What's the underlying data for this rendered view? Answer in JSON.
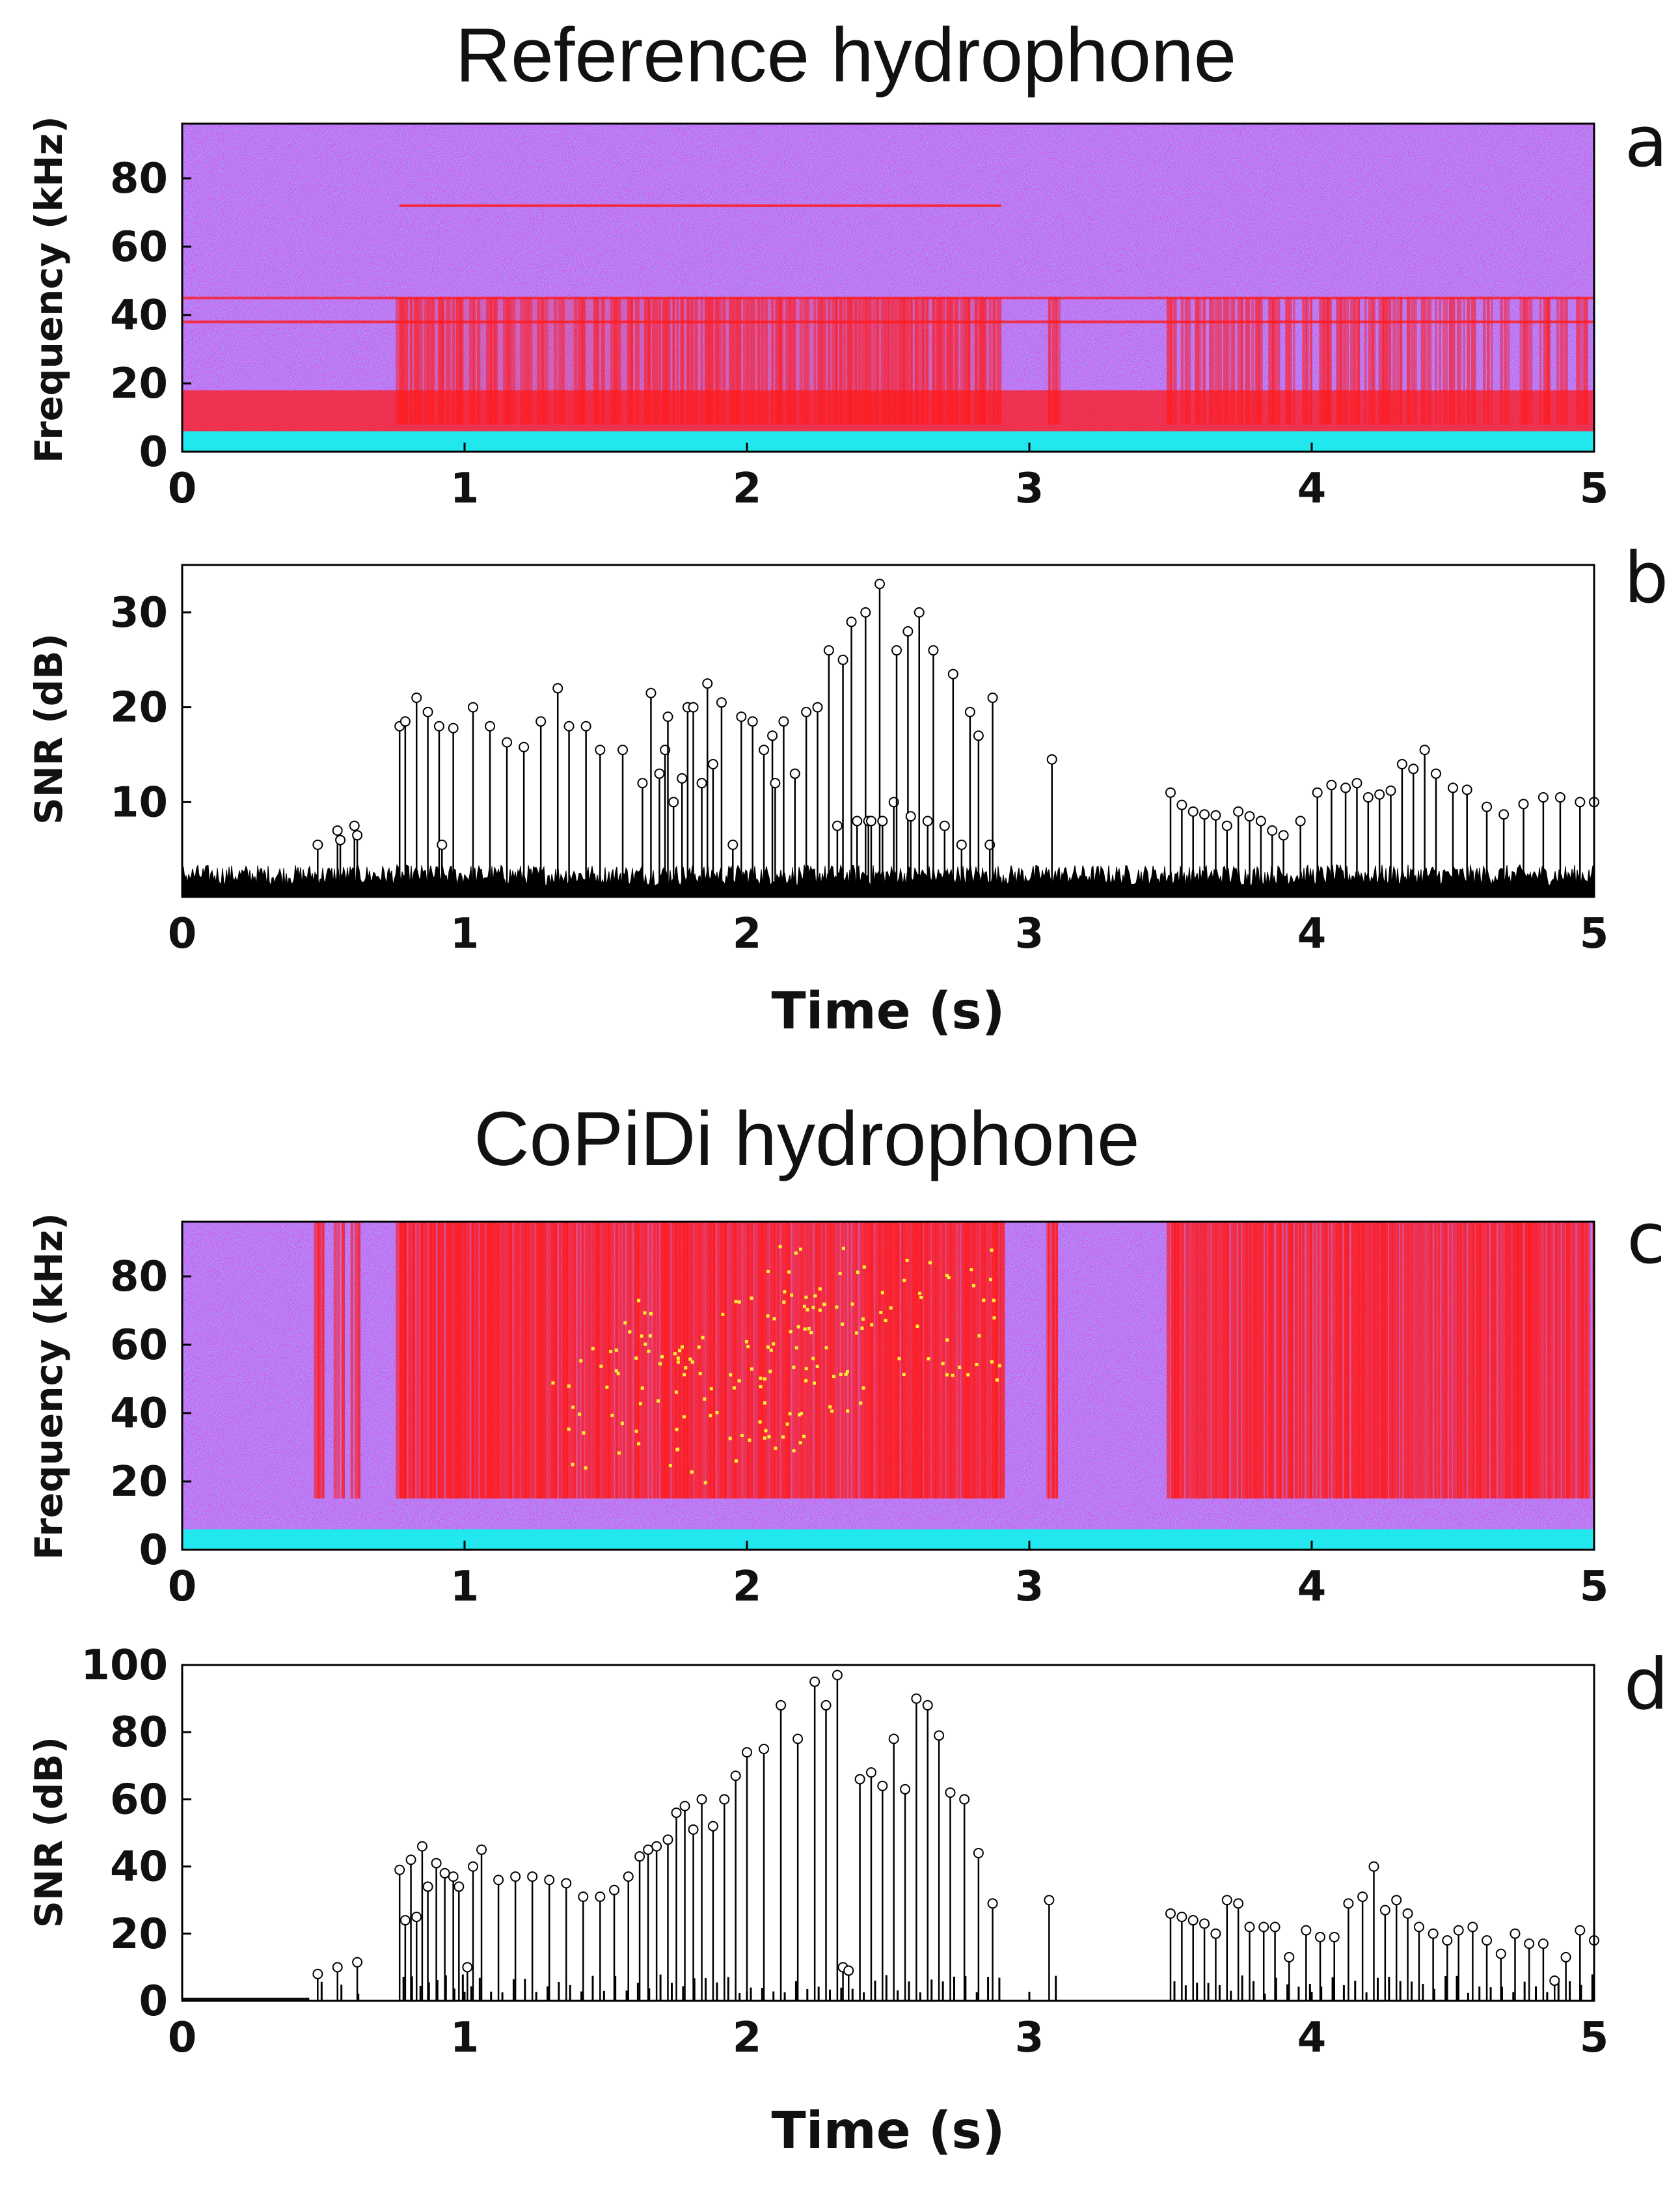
{
  "titles": {
    "top": "Reference hydrophone",
    "bottom": "CoPiDi hydrophone"
  },
  "colors": {
    "spec_bg": "#e640f0",
    "spec_hot": "#ff1a1a",
    "spec_low": "#21e8ee",
    "spec_peak": "#ffee33",
    "ink": "#000000"
  },
  "chart_data": [
    {
      "panel": "a",
      "type": "heatmap",
      "title": "Reference hydrophone",
      "xlabel": "",
      "ylabel": "Frequency (kHz)",
      "xlim": [
        0,
        5
      ],
      "ylim": [
        0,
        96
      ],
      "xticks": [
        "0",
        "1",
        "2",
        "3",
        "4",
        "5"
      ],
      "yticks": [
        "0",
        "20",
        "40",
        "60",
        "80"
      ],
      "noise_floor_band_khz": [
        0,
        6
      ],
      "click_band_khz": [
        8,
        45
      ],
      "click_times": [
        0.77,
        0.82,
        0.87,
        0.92,
        0.97,
        1.03,
        1.09,
        1.15,
        1.21,
        1.27,
        1.33,
        1.4,
        1.47,
        1.53,
        1.59,
        1.65,
        1.7,
        1.75,
        1.8,
        1.85,
        1.9,
        1.95,
        2.0,
        2.05,
        2.1,
        2.15,
        2.2,
        2.25,
        2.3,
        2.34,
        2.38,
        2.42,
        2.46,
        2.5,
        2.54,
        2.58,
        2.62,
        2.67,
        2.72,
        2.77,
        2.82,
        2.87,
        3.08,
        3.5,
        3.55,
        3.6,
        3.65,
        3.7,
        3.75,
        3.8,
        3.86,
        3.92,
        3.98,
        4.04,
        4.1,
        4.15,
        4.2,
        4.25,
        4.3,
        4.35,
        4.4,
        4.45,
        4.5,
        4.55,
        4.62,
        4.68,
        4.75,
        4.82,
        4.88,
        4.95
      ],
      "tonal_lines_khz": [
        38,
        45,
        72
      ]
    },
    {
      "panel": "b",
      "type": "scatter",
      "title": "",
      "xlabel": "Time (s)",
      "ylabel": "SNR (dB)",
      "xlim": [
        0,
        5
      ],
      "ylim": [
        0,
        35
      ],
      "xticks": [
        "0",
        "1",
        "2",
        "3",
        "4",
        "5"
      ],
      "yticks": [
        "10",
        "20",
        "30"
      ],
      "noise_level_db": 2,
      "peaks": {
        "t": [
          0.48,
          0.55,
          0.56,
          0.61,
          0.62,
          0.77,
          0.79,
          0.83,
          0.87,
          0.91,
          0.92,
          0.96,
          1.03,
          1.09,
          1.15,
          1.21,
          1.27,
          1.33,
          1.37,
          1.43,
          1.48,
          1.56,
          1.63,
          1.66,
          1.69,
          1.71,
          1.72,
          1.74,
          1.77,
          1.79,
          1.81,
          1.84,
          1.86,
          1.88,
          1.91,
          1.95,
          1.98,
          2.02,
          2.06,
          2.09,
          2.1,
          2.13,
          2.17,
          2.21,
          2.25,
          2.29,
          2.32,
          2.34,
          2.37,
          2.39,
          2.42,
          2.43,
          2.44,
          2.47,
          2.48,
          2.52,
          2.53,
          2.57,
          2.58,
          2.61,
          2.64,
          2.66,
          2.7,
          2.73,
          2.76,
          2.79,
          2.82,
          2.86,
          2.87,
          3.08,
          3.5,
          3.54,
          3.58,
          3.62,
          3.66,
          3.7,
          3.74,
          3.78,
          3.82,
          3.86,
          3.9,
          3.96,
          4.02,
          4.07,
          4.12,
          4.16,
          4.2,
          4.24,
          4.28,
          4.32,
          4.36,
          4.4,
          4.44,
          4.5,
          4.55,
          4.62,
          4.68,
          4.75,
          4.82,
          4.88,
          4.95,
          5.0
        ],
        "snr": [
          5.5,
          7,
          6,
          7.5,
          6.5,
          18,
          18.5,
          21,
          19.5,
          18,
          5.5,
          17.8,
          20,
          18,
          16.3,
          15.8,
          18.5,
          22,
          18,
          18,
          15.5,
          15.5,
          12,
          21.5,
          13,
          15.5,
          19,
          10,
          12.5,
          20,
          20,
          12,
          22.5,
          14,
          20.5,
          5.5,
          19,
          18.5,
          15.5,
          17,
          12,
          18.5,
          13,
          19.5,
          20,
          26,
          7.5,
          25,
          29,
          8,
          30,
          8,
          8,
          33,
          8,
          10,
          26,
          28,
          8.5,
          30,
          8,
          26,
          7.5,
          23.5,
          5.5,
          19.5,
          17,
          5.5,
          21,
          14.5,
          11,
          9.7,
          9,
          8.7,
          8.6,
          7.5,
          9,
          8.5,
          8,
          7,
          6.5,
          8,
          11,
          11.8,
          11.5,
          12,
          10.5,
          10.8,
          11.2,
          14,
          13.5,
          15.5,
          13,
          11.5,
          11.3,
          9.5,
          8.7,
          9.8,
          10.5,
          10.5,
          10,
          10
        ]
      }
    },
    {
      "panel": "c",
      "type": "heatmap",
      "title": "CoPiDi hydrophone",
      "xlabel": "",
      "ylabel": "Frequency (kHz)",
      "xlim": [
        0,
        5
      ],
      "ylim": [
        0,
        96
      ],
      "xticks": [
        "0",
        "1",
        "2",
        "3",
        "4",
        "5"
      ],
      "yticks": [
        "0",
        "20",
        "40",
        "60",
        "80"
      ],
      "noise_floor_band_khz": [
        0,
        6
      ],
      "click_band_khz": [
        15,
        96
      ],
      "click_times": [
        0.48,
        0.55,
        0.61,
        0.77,
        0.8,
        0.83,
        0.86,
        0.89,
        0.92,
        0.95,
        0.98,
        1.01,
        1.04,
        1.08,
        1.12,
        1.16,
        1.2,
        1.24,
        1.28,
        1.32,
        1.36,
        1.4,
        1.44,
        1.48,
        1.52,
        1.56,
        1.6,
        1.64,
        1.68,
        1.72,
        1.76,
        1.8,
        1.84,
        1.88,
        1.92,
        1.96,
        2.0,
        2.04,
        2.08,
        2.12,
        2.16,
        2.2,
        2.24,
        2.28,
        2.32,
        2.36,
        2.4,
        2.44,
        2.48,
        2.52,
        2.56,
        2.6,
        2.64,
        2.68,
        2.72,
        2.76,
        2.8,
        2.84,
        2.88,
        3.08,
        3.5,
        3.54,
        3.58,
        3.62,
        3.66,
        3.7,
        3.74,
        3.78,
        3.82,
        3.86,
        3.9,
        3.94,
        3.98,
        4.02,
        4.06,
        4.1,
        4.14,
        4.18,
        4.22,
        4.26,
        4.3,
        4.34,
        4.38,
        4.42,
        4.46,
        4.5,
        4.54,
        4.58,
        4.62,
        4.66,
        4.7,
        4.74,
        4.78,
        4.82,
        4.86,
        4.9,
        4.94,
        4.98
      ],
      "peak_patches": [
        {
          "t": 2.0,
          "khz": 55
        },
        {
          "t": 2.45,
          "khz": 70
        },
        {
          "t": 1.75,
          "khz": 40
        }
      ]
    },
    {
      "panel": "d",
      "type": "scatter",
      "title": "",
      "xlabel": "Time (s)",
      "ylabel": "SNR (dB)",
      "xlim": [
        0,
        5
      ],
      "ylim": [
        0,
        100
      ],
      "xticks": [
        "0",
        "1",
        "2",
        "3",
        "4",
        "5"
      ],
      "yticks": [
        "0",
        "20",
        "40",
        "60",
        "80",
        "100"
      ],
      "peaks": {
        "t": [
          0.48,
          0.55,
          0.62,
          0.77,
          0.79,
          0.81,
          0.83,
          0.85,
          0.87,
          0.9,
          0.93,
          0.96,
          0.98,
          1.01,
          1.03,
          1.06,
          1.12,
          1.18,
          1.24,
          1.3,
          1.36,
          1.42,
          1.48,
          1.53,
          1.58,
          1.62,
          1.65,
          1.68,
          1.72,
          1.75,
          1.78,
          1.81,
          1.84,
          1.88,
          1.92,
          1.96,
          2.0,
          2.06,
          2.12,
          2.18,
          2.24,
          2.28,
          2.32,
          2.34,
          2.36,
          2.4,
          2.44,
          2.48,
          2.52,
          2.56,
          2.6,
          2.64,
          2.68,
          2.72,
          2.77,
          2.82,
          2.87,
          3.07,
          3.5,
          3.54,
          3.58,
          3.62,
          3.66,
          3.7,
          3.74,
          3.78,
          3.83,
          3.87,
          3.92,
          3.98,
          4.03,
          4.08,
          4.13,
          4.18,
          4.22,
          4.26,
          4.3,
          4.34,
          4.38,
          4.43,
          4.48,
          4.52,
          4.57,
          4.62,
          4.67,
          4.72,
          4.77,
          4.82,
          4.86,
          4.9,
          4.95,
          5.0
        ],
        "snr": [
          8,
          10,
          11.5,
          39,
          24,
          42,
          25,
          46,
          34,
          41,
          38,
          37,
          34,
          10,
          40,
          45,
          36,
          37,
          37,
          36,
          35,
          31,
          31,
          33,
          37,
          43,
          45,
          46,
          48,
          56,
          58,
          51,
          60,
          52,
          60,
          67,
          74,
          75,
          88,
          78,
          95,
          88,
          97,
          10,
          9,
          66,
          68,
          64,
          78,
          63,
          90,
          88,
          79,
          62,
          60,
          44,
          29,
          30,
          26,
          25,
          24,
          23,
          20,
          30,
          29,
          22,
          22,
          22,
          13,
          21,
          19,
          19,
          29,
          31,
          40,
          27,
          30,
          26,
          22,
          20,
          18,
          21,
          22,
          18,
          14,
          20,
          17,
          17,
          6,
          13,
          21,
          18
        ]
      }
    }
  ],
  "axes": {
    "ylabel_freq": "Frequency (kHz)",
    "ylabel_snr": "SNR (dB)",
    "xlabel_time": "Time (s)"
  },
  "panel_labels": {
    "a": "a",
    "b": "b",
    "c": "c",
    "d": "d"
  }
}
